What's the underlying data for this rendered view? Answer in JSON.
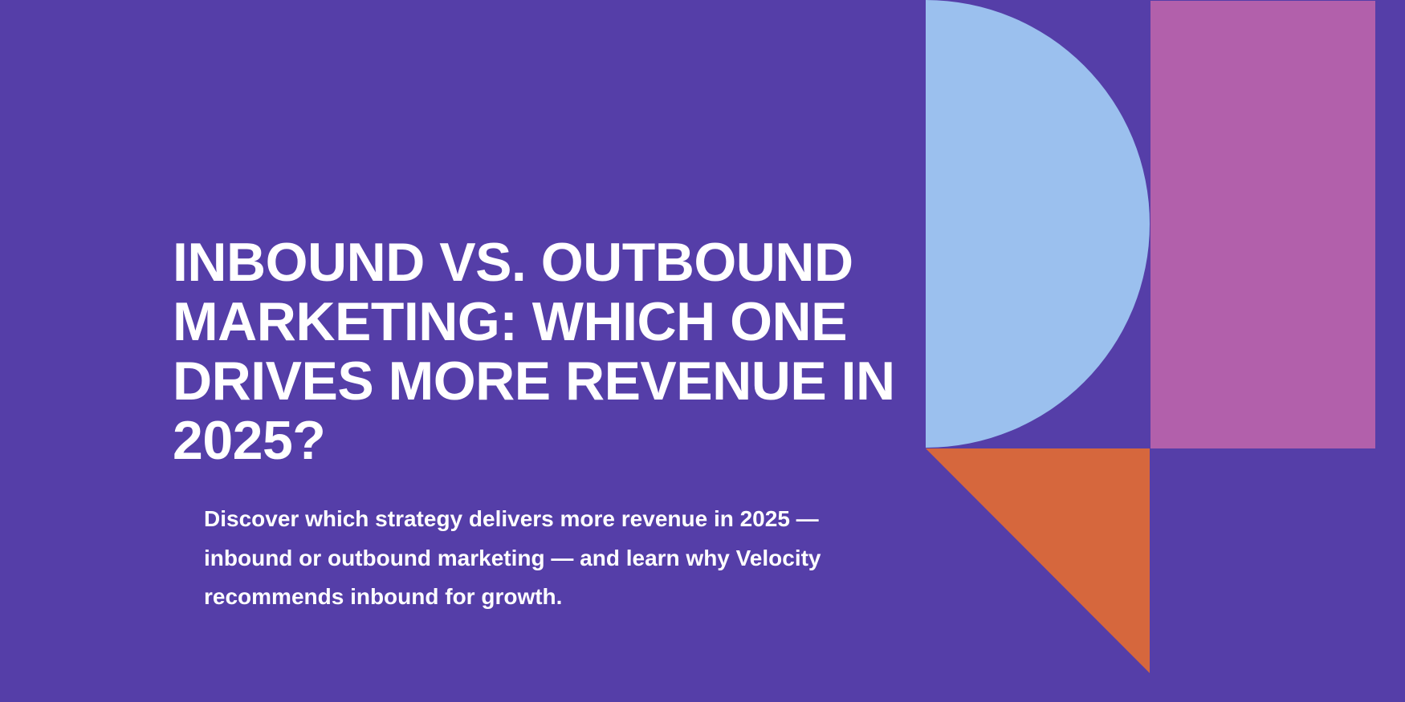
{
  "hero": {
    "title_lines": [
      "INBOUND VS. OUTBOUND",
      "MARKETING: WHICH ONE",
      "DRIVES MORE REVENUE IN",
      "2025?"
    ],
    "description_lines": [
      "Discover which strategy delivers more revenue in 2025 —",
      "inbound or outbound marketing — and learn why Velocity",
      "recommends inbound for growth."
    ]
  }
}
